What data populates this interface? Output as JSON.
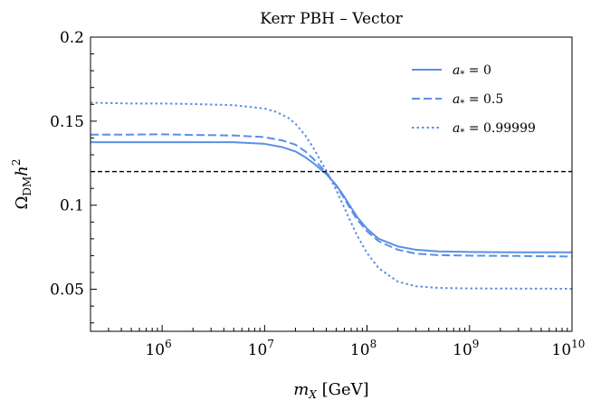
{
  "chart_data": {
    "type": "line",
    "title": "Kerr PBH – Vector",
    "xlabel_main": "m",
    "xlabel_sub": "X",
    "xlabel_unit": " [GeV]",
    "ylabel_main": "Ω",
    "ylabel_sub": "DM",
    "ylabel_h": "h",
    "ylabel_sup": "2",
    "xscale": "log",
    "xlim": [
      200000,
      10000000000
    ],
    "ylim": [
      0.025,
      0.2
    ],
    "x_ticks": [
      {
        "value": 1000000,
        "base": "10",
        "exp": "6"
      },
      {
        "value": 10000000,
        "base": "10",
        "exp": "7"
      },
      {
        "value": 100000000,
        "base": "10",
        "exp": "8"
      },
      {
        "value": 1000000000,
        "base": "10",
        "exp": "9"
      },
      {
        "value": 10000000000,
        "base": "10",
        "exp": "10"
      }
    ],
    "y_ticks": [
      {
        "value": 0.05,
        "label": "0.05"
      },
      {
        "value": 0.1,
        "label": "0.1"
      },
      {
        "value": 0.15,
        "label": "0.15"
      },
      {
        "value": 0.2,
        "label": "0.2"
      }
    ],
    "reference_line": {
      "y": 0.12,
      "style": "dashed",
      "color": "#000000"
    },
    "grid": false,
    "legend_position": "top-right",
    "series": [
      {
        "name_prefix": "a",
        "name_sub": "*",
        "name_suffix": " = 0",
        "style": "solid",
        "color": "#5b8fe6",
        "x": [
          200000,
          500000,
          1000000,
          2000000,
          5000000,
          10000000,
          15000000,
          20000000,
          25000000,
          30000000,
          40000000,
          50000000,
          60000000,
          70000000,
          80000000,
          100000000,
          130000000,
          200000000,
          300000000,
          500000000,
          1000000000,
          3000000000,
          10000000000
        ],
        "y": [
          0.1375,
          0.1375,
          0.1375,
          0.1375,
          0.1375,
          0.1365,
          0.1345,
          0.132,
          0.1285,
          0.125,
          0.1185,
          0.112,
          0.105,
          0.0985,
          0.093,
          0.086,
          0.08,
          0.0755,
          0.0735,
          0.0725,
          0.0722,
          0.072,
          0.072
        ]
      },
      {
        "name_prefix": "a",
        "name_sub": "*",
        "name_suffix": " = 0.5",
        "style": "dashed",
        "color": "#5b8fe6",
        "x": [
          200000,
          500000,
          1000000,
          2000000,
          5000000,
          10000000,
          15000000,
          20000000,
          25000000,
          30000000,
          40000000,
          50000000,
          60000000,
          70000000,
          80000000,
          100000000,
          130000000,
          200000000,
          300000000,
          500000000,
          1000000000,
          3000000000,
          10000000000
        ],
        "y": [
          0.142,
          0.142,
          0.1422,
          0.1418,
          0.1415,
          0.1405,
          0.1385,
          0.136,
          0.132,
          0.1275,
          0.1195,
          0.1115,
          0.104,
          0.097,
          0.0915,
          0.0845,
          0.0785,
          0.0735,
          0.0712,
          0.0703,
          0.07,
          0.0698,
          0.0695
        ]
      },
      {
        "name_prefix": "a",
        "name_sub": "*",
        "name_suffix": " = 0.99999",
        "style": "dotted",
        "color": "#5b8fe6",
        "x": [
          200000,
          500000,
          1000000,
          2000000,
          5000000,
          10000000,
          13000000,
          17000000,
          20000000,
          25000000,
          30000000,
          40000000,
          50000000,
          60000000,
          70000000,
          80000000,
          100000000,
          130000000,
          200000000,
          300000000,
          500000000,
          1000000000,
          10000000000
        ],
        "y": [
          0.161,
          0.1605,
          0.1605,
          0.1602,
          0.1595,
          0.1575,
          0.1555,
          0.152,
          0.1485,
          0.1415,
          0.134,
          0.1205,
          0.109,
          0.0985,
          0.0895,
          0.082,
          0.0715,
          0.0625,
          0.0545,
          0.0518,
          0.0508,
          0.0505,
          0.0503
        ]
      }
    ]
  }
}
